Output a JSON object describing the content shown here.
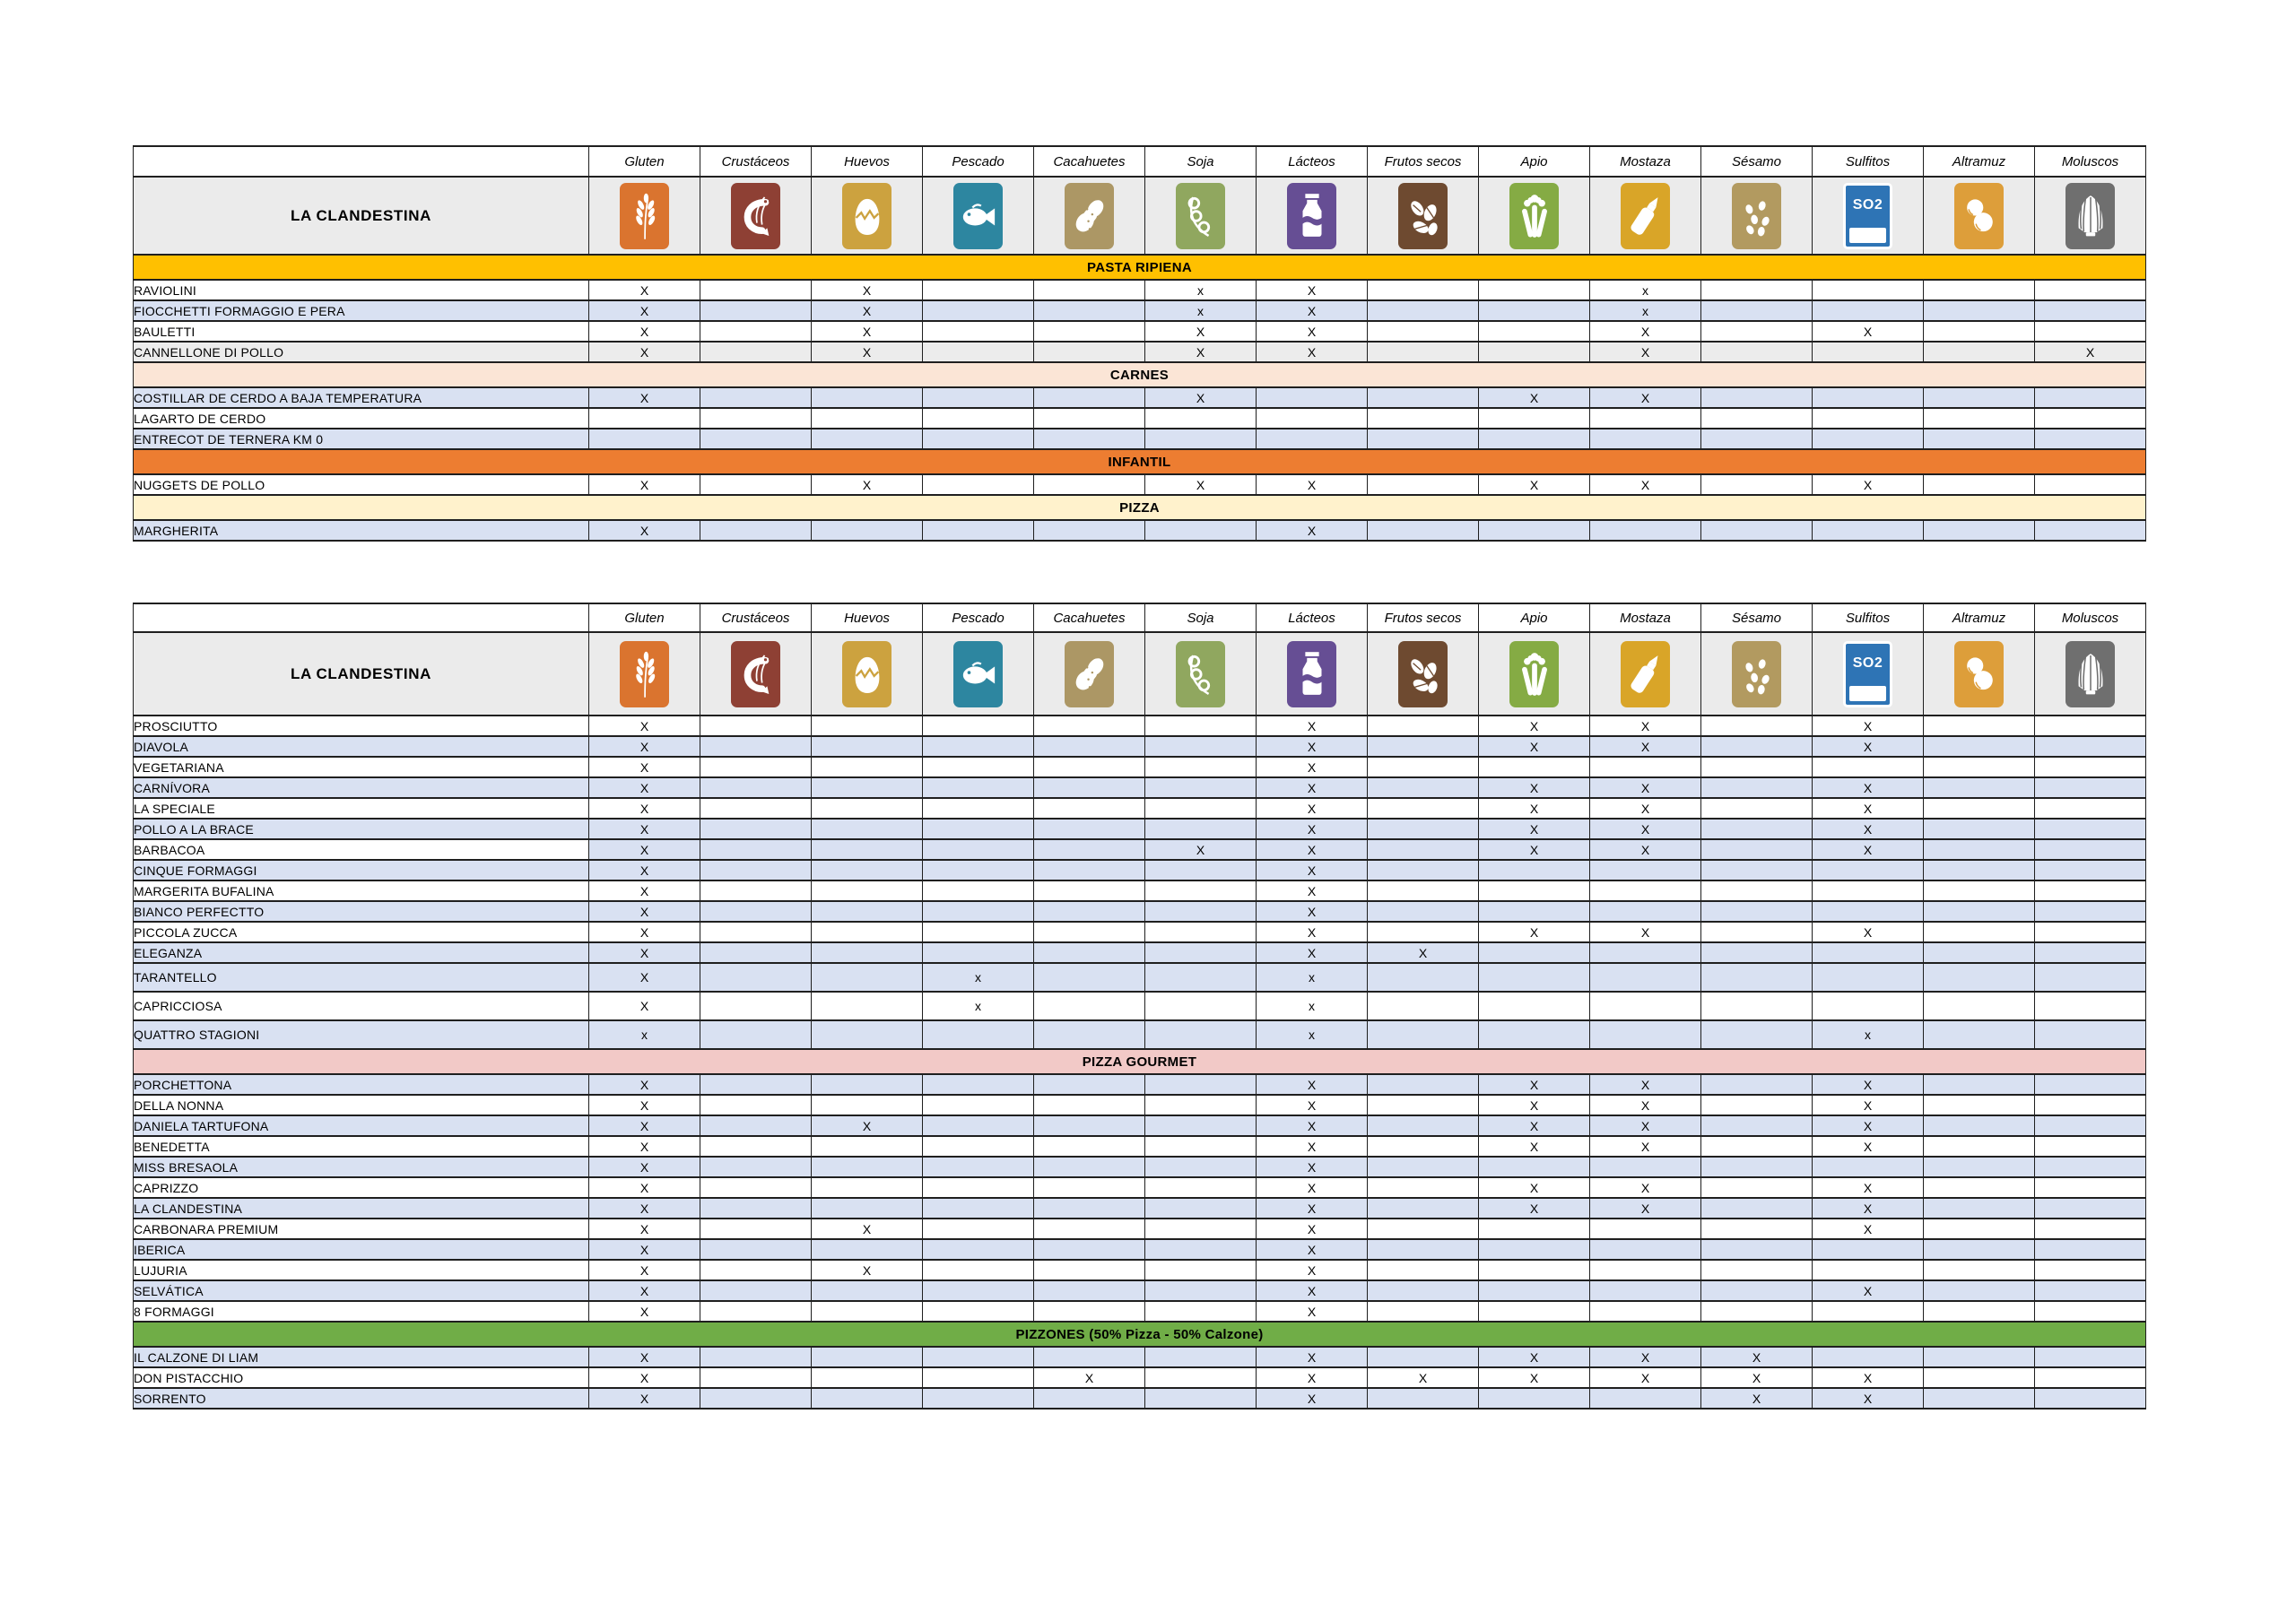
{
  "brand": "LA CLANDESTINA",
  "palette": {
    "white": "#FFFFFF",
    "lavender": "#D9E1F2",
    "gray": "#ECECEC",
    "header_gray": "#EBEBEB",
    "border": "#1F1F1F"
  },
  "allergens": [
    {
      "key": "gluten",
      "label": "Gluten",
      "icon": "wheat-icon",
      "color": "#DA742F"
    },
    {
      "key": "crustaceos",
      "label": "Crustáceos",
      "icon": "shrimp-icon",
      "color": "#8E4034"
    },
    {
      "key": "huevos",
      "label": "Huevos",
      "icon": "egg-icon",
      "color": "#CCA23F"
    },
    {
      "key": "pescado",
      "label": "Pescado",
      "icon": "fish-icon",
      "color": "#2D86A0"
    },
    {
      "key": "cacahuetes",
      "label": "Cacahuetes",
      "icon": "peanut-icon",
      "color": "#AC9765"
    },
    {
      "key": "soja",
      "label": "Soja",
      "icon": "soy-pods-icon",
      "color": "#90A75F"
    },
    {
      "key": "lacteos",
      "label": "Lácteos",
      "icon": "milk-bottle-icon",
      "color": "#664E94"
    },
    {
      "key": "frutos_secos",
      "label": "Frutos secos",
      "icon": "nuts-icon",
      "color": "#6E4A30"
    },
    {
      "key": "apio",
      "label": "Apio",
      "icon": "celery-icon",
      "color": "#85AB44"
    },
    {
      "key": "mostaza",
      "label": "Mostaza",
      "icon": "mustard-bottle-icon",
      "color": "#D9A528"
    },
    {
      "key": "sesamo",
      "label": "Sésamo",
      "icon": "sesame-seeds-icon",
      "color": "#B29A60"
    },
    {
      "key": "sulfitos",
      "label": "Sulfitos",
      "icon": "so2-icon",
      "color": "#2E74B5",
      "icon_text": "SO2"
    },
    {
      "key": "altramuz",
      "label": "Altramuz",
      "icon": "lupin-beans-icon",
      "color": "#DD9E3A"
    },
    {
      "key": "moluscos",
      "label": "Moluscos",
      "icon": "shell-icon",
      "color": "#6F6F6F"
    }
  ],
  "tables": [
    {
      "id": "table-1",
      "data_name": "allergen-table-pasta-carnes",
      "corner_blank": false,
      "sections": [
        {
          "label": "PASTA RIPIENA",
          "color": "#FFC000",
          "rows": [
            {
              "name": "RAVIOLINI",
              "bg": "white",
              "marks": {
                "gluten": "X",
                "huevos": "X",
                "soja": "x",
                "lacteos": "X",
                "mostaza": "x"
              }
            },
            {
              "name": "FIOCCHETTI FORMAGGIO E PERA",
              "bg": "lavender",
              "marks": {
                "gluten": "X",
                "huevos": "X",
                "soja": "x",
                "lacteos": "X",
                "mostaza": "x"
              }
            },
            {
              "name": "BAULETTI",
              "bg": "white",
              "marks": {
                "gluten": "X",
                "huevos": "X",
                "soja": "X",
                "lacteos": "X",
                "mostaza": "X",
                "sulfitos": "X"
              }
            },
            {
              "name": "CANNELLONE DI POLLO",
              "bg": "gray",
              "marks": {
                "gluten": "X",
                "huevos": "X",
                "soja": "X",
                "lacteos": "X",
                "mostaza": "X",
                "moluscos": "X"
              }
            }
          ]
        },
        {
          "label": "CARNES",
          "color": "#FBE5D6",
          "rows": [
            {
              "name": "COSTILLAR DE CERDO A BAJA TEMPERATURA",
              "bg": "lavender",
              "marks": {
                "gluten": "X",
                "soja": "X",
                "apio": "X",
                "mostaza": "X"
              }
            },
            {
              "name": "LAGARTO DE CERDO",
              "bg": "white",
              "marks": {}
            },
            {
              "name": "ENTRECOT DE TERNERA KM 0",
              "bg": "lavender",
              "marks": {}
            }
          ]
        },
        {
          "label": "INFANTIL",
          "color": "#ED7D31",
          "rows": [
            {
              "name": "NUGGETS DE POLLO",
              "bg": "white",
              "marks": {
                "gluten": "X",
                "huevos": "X",
                "soja": "X",
                "lacteos": "X",
                "apio": "X",
                "mostaza": "X",
                "sulfitos": "X"
              }
            }
          ]
        },
        {
          "label": "PIZZA",
          "color": "#FFF2CC",
          "rows": [
            {
              "name": "MARGHERITA",
              "bg": "lavender",
              "marks": {
                "gluten": "X",
                "lacteos": "X"
              }
            }
          ]
        }
      ]
    },
    {
      "id": "table-2",
      "data_name": "allergen-table-pizzas",
      "corner_blank": true,
      "sections": [
        {
          "label": null,
          "color": null,
          "rows": [
            {
              "name": "PROSCIUTTO",
              "bg": "white",
              "marks": {
                "gluten": "X",
                "lacteos": "X",
                "apio": "X",
                "mostaza": "X",
                "sulfitos": "X"
              }
            },
            {
              "name": "DIAVOLA",
              "bg": "lavender",
              "marks": {
                "gluten": "X",
                "lacteos": "X",
                "apio": "X",
                "mostaza": "X",
                "sulfitos": "X"
              }
            },
            {
              "name": "VEGETARIANA",
              "bg": "white",
              "marks": {
                "gluten": "X",
                "lacteos": "X"
              }
            },
            {
              "name": "CARNÍVORA",
              "bg": "lavender",
              "marks": {
                "gluten": "X",
                "lacteos": "X",
                "apio": "X",
                "mostaza": "X",
                "sulfitos": "X"
              }
            },
            {
              "name": "LA SPECIALE",
              "bg": "white",
              "marks": {
                "gluten": "X",
                "lacteos": "X",
                "apio": "X",
                "mostaza": "X",
                "sulfitos": "X"
              }
            },
            {
              "name": "POLLO A LA BRACE",
              "bg": "lavender",
              "marks": {
                "gluten": "X",
                "lacteos": "X",
                "apio": "X",
                "mostaza": "X",
                "sulfitos": "X"
              }
            },
            {
              "name": "BARBACOA",
              "bg": "lavender",
              "name_bg": "white",
              "marks": {
                "gluten": "X",
                "soja": "X",
                "lacteos": "X",
                "apio": "X",
                "mostaza": "X",
                "sulfitos": "X"
              }
            },
            {
              "name": "CINQUE FORMAGGI",
              "bg": "lavender",
              "marks": {
                "gluten": "X",
                "lacteos": "X"
              }
            },
            {
              "name": "MARGERITA BUFALINA",
              "bg": "white",
              "marks": {
                "gluten": "X",
                "lacteos": "X"
              }
            },
            {
              "name": "BIANCO PERFECTTO",
              "bg": "lavender",
              "marks": {
                "gluten": "X",
                "lacteos": "X"
              }
            },
            {
              "name": "PICCOLA ZUCCA",
              "bg": "white",
              "marks": {
                "gluten": "X",
                "lacteos": "X",
                "apio": "X",
                "mostaza": "X",
                "sulfitos": "X"
              }
            },
            {
              "name": "ELEGANZA",
              "bg": "lavender",
              "marks": {
                "gluten": "X",
                "lacteos": "X",
                "frutos_secos": "X"
              }
            },
            {
              "name": "TARANTELLO",
              "bg": "lavender",
              "tall": true,
              "marks": {
                "gluten": "X",
                "pescado": "x",
                "lacteos": "x"
              }
            },
            {
              "name": "CAPRICCIOSA",
              "bg": "white",
              "tall": true,
              "marks": {
                "gluten": "X",
                "pescado": "x",
                "lacteos": "x"
              }
            },
            {
              "name": "QUATTRO STAGIONI",
              "bg": "lavender",
              "tall": true,
              "marks": {
                "gluten": "x",
                "lacteos": "x",
                "sulfitos": "x"
              }
            }
          ]
        },
        {
          "label": "PIZZA GOURMET",
          "color": "#F2C9C7",
          "rows": [
            {
              "name": "PORCHETTONA",
              "bg": "lavender",
              "marks": {
                "gluten": "X",
                "lacteos": "X",
                "apio": "X",
                "mostaza": "X",
                "sulfitos": "X"
              }
            },
            {
              "name": "DELLA NONNA",
              "bg": "white",
              "marks": {
                "gluten": "X",
                "lacteos": "X",
                "apio": "X",
                "mostaza": "X",
                "sulfitos": "X"
              }
            },
            {
              "name": "DANIELA TARTUFONA",
              "bg": "lavender",
              "marks": {
                "gluten": "X",
                "huevos": "X",
                "lacteos": "X",
                "apio": "X",
                "mostaza": "X",
                "sulfitos": "X"
              }
            },
            {
              "name": "BENEDETTA",
              "bg": "white",
              "marks": {
                "gluten": "X",
                "lacteos": "X",
                "apio": "X",
                "mostaza": "X",
                "sulfitos": "X"
              }
            },
            {
              "name": "MISS BRESAOLA",
              "bg": "lavender",
              "marks": {
                "gluten": "X",
                "lacteos": "X"
              }
            },
            {
              "name": "CAPRIZZO",
              "bg": "white",
              "marks": {
                "gluten": "X",
                "lacteos": "X",
                "apio": "X",
                "mostaza": "X",
                "sulfitos": "X"
              }
            },
            {
              "name": "LA CLANDESTINA",
              "bg": "lavender",
              "marks": {
                "gluten": "X",
                "lacteos": "X",
                "apio": "X",
                "mostaza": "X",
                "sulfitos": "X"
              }
            },
            {
              "name": "CARBONARA PREMIUM",
              "bg": "white",
              "marks": {
                "gluten": "X",
                "huevos": "X",
                "lacteos": "X",
                "sulfitos": "X"
              }
            },
            {
              "name": "IBERICA",
              "bg": "lavender",
              "marks": {
                "gluten": "X",
                "lacteos": "X"
              }
            },
            {
              "name": "LUJURIA",
              "bg": "white",
              "marks": {
                "gluten": "X",
                "huevos": "X",
                "lacteos": "X"
              }
            },
            {
              "name": "SELVÁTICA",
              "bg": "lavender",
              "marks": {
                "gluten": "X",
                "lacteos": "X",
                "sulfitos": "X"
              }
            },
            {
              "name": "8 FORMAGGI",
              "bg": "white",
              "marks": {
                "gluten": "X",
                "lacteos": "X"
              }
            }
          ]
        },
        {
          "label": "PIZZONES (50% Pizza - 50% Calzone)",
          "color": "#70AD47",
          "rows": [
            {
              "name": "IL CALZONE DI LIAM",
              "bg": "lavender",
              "marks": {
                "gluten": "X",
                "lacteos": "X",
                "apio": "X",
                "mostaza": "X",
                "sesamo": "X"
              }
            },
            {
              "name": "DON PISTACCHIO",
              "bg": "white",
              "marks": {
                "gluten": "X",
                "cacahuetes": "X",
                "lacteos": "X",
                "frutos_secos": "X",
                "apio": "X",
                "mostaza": "X",
                "sesamo": "X",
                "sulfitos": "X"
              }
            },
            {
              "name": "SORRENTO",
              "bg": "lavender",
              "marks": {
                "gluten": "X",
                "lacteos": "X",
                "sesamo": "X",
                "sulfitos": "X"
              }
            }
          ]
        }
      ]
    }
  ]
}
